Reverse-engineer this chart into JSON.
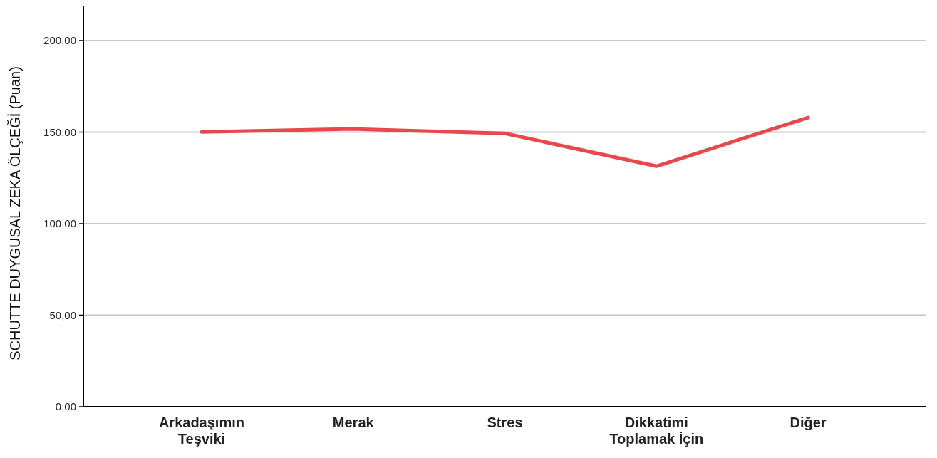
{
  "chart_data": {
    "type": "line",
    "ylabel": "SCHUTTE DUYGUSAL ZEKA ÖLÇEĞİ (Puan)",
    "categories": [
      "Arkadaşımın Teşviki",
      "Merak",
      "Stres",
      "Dikkatimi Toplamak İçin",
      "Diğer"
    ],
    "series": [
      {
        "color": "#e8474b",
        "values": [
          150.1,
          151.7,
          149.3,
          131.4,
          157.9
        ]
      }
    ],
    "ylim": [
      0,
      221
    ],
    "yticks": [
      {
        "value": 0,
        "label": "0,00"
      },
      {
        "value": 50,
        "label": "50,00"
      },
      {
        "value": 100,
        "label": "100,00"
      },
      {
        "value": 150,
        "label": "150,00"
      },
      {
        "value": 200,
        "label": "200,00"
      }
    ],
    "grid": "y",
    "marker": "none",
    "line_style": "solid"
  }
}
